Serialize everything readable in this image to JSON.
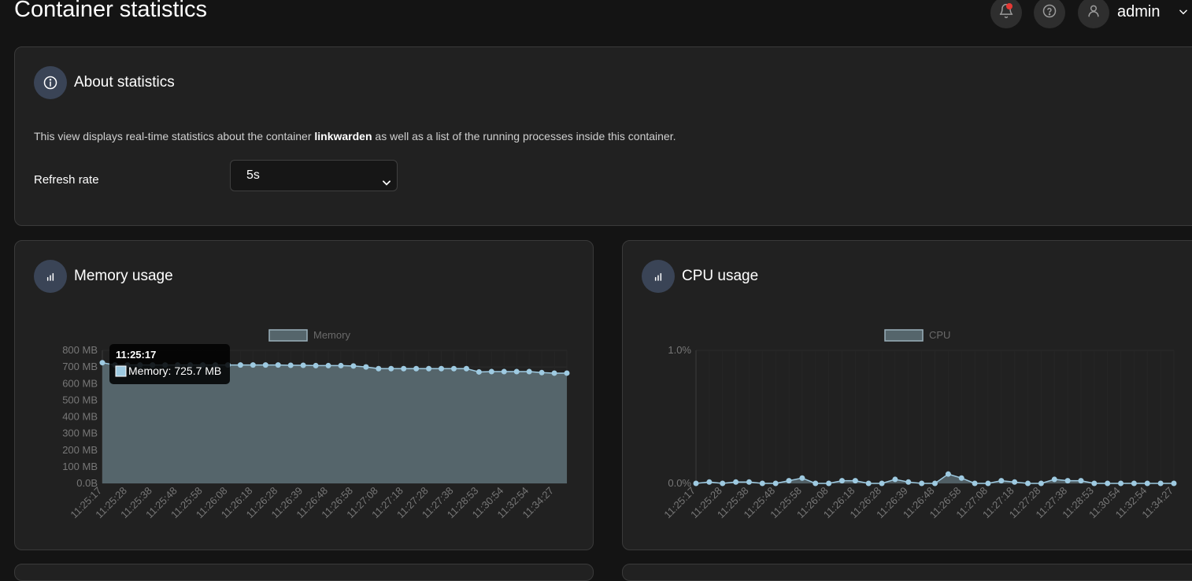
{
  "page": {
    "title": "Container statistics"
  },
  "header": {
    "username": "admin",
    "icons": [
      "bell-icon",
      "help-icon",
      "user-icon",
      "chevron-down-icon"
    ],
    "notification_color": "#e53935"
  },
  "about": {
    "title": "About statistics",
    "description_prefix": "This view displays real-time statistics about the container ",
    "container_name": "linkwarden",
    "description_suffix": " as well as a list of the running processes inside this container.",
    "refresh_label": "Refresh rate",
    "refresh_value": "5s"
  },
  "memory": {
    "title": "Memory usage",
    "tooltip": {
      "time": "11:25:17",
      "label": "Memory: 725.7 MB"
    }
  },
  "cpu": {
    "title": "CPU usage"
  },
  "colors": {
    "accent_fill": "#55656b",
    "point": "#9ecae1",
    "icon_bg": "#3a4456"
  },
  "chart_data": [
    {
      "type": "area",
      "title": "",
      "legend": "Memory",
      "y_ticks": [
        "800 MB",
        "700 MB",
        "600 MB",
        "500 MB",
        "400 MB",
        "300 MB",
        "200 MB",
        "100 MB",
        "0.0B"
      ],
      "ylim": [
        0,
        800
      ],
      "x_labels": [
        "11:25:17",
        "11:25:28",
        "11:25:38",
        "11:25:48",
        "11:25:58",
        "11:26:08",
        "11:26:18",
        "11:26:28",
        "11:26:39",
        "11:26:48",
        "11:26:58",
        "11:27:08",
        "11:27:18",
        "11:27:28",
        "11:27:38",
        "11:28:53",
        "11:30:54",
        "11:32:54",
        "11:34:27"
      ],
      "series": [
        {
          "name": "Memory",
          "values": [
            725.7,
            712,
            712,
            712,
            712,
            712,
            712,
            712,
            712,
            712,
            712,
            712,
            712,
            712,
            712,
            710,
            710,
            708,
            708,
            708,
            706,
            700,
            690,
            690,
            690,
            690,
            690,
            690,
            690,
            690,
            670,
            672,
            672,
            672,
            672,
            666,
            663,
            663
          ]
        }
      ]
    },
    {
      "type": "area",
      "title": "",
      "legend": "CPU",
      "y_ticks": [
        "1.0%",
        "0.0%"
      ],
      "ylim": [
        0,
        1
      ],
      "x_labels": [
        "11:25:17",
        "11:25:28",
        "11:25:38",
        "11:25:48",
        "11:25:58",
        "11:26:08",
        "11:26:18",
        "11:26:28",
        "11:26:39",
        "11:26:48",
        "11:26:58",
        "11:27:08",
        "11:27:18",
        "11:27:28",
        "11:27:38",
        "11:28:53",
        "11:30:54",
        "11:32:54",
        "11:34:27"
      ],
      "series": [
        {
          "name": "CPU",
          "values": [
            0.0,
            0.01,
            0.0,
            0.01,
            0.01,
            0.0,
            0.0,
            0.02,
            0.04,
            0.0,
            0.0,
            0.02,
            0.02,
            0.0,
            0.0,
            0.03,
            0.01,
            0.0,
            0.0,
            0.07,
            0.04,
            0.0,
            0.0,
            0.02,
            0.01,
            0.0,
            0.0,
            0.03,
            0.02,
            0.02,
            0.0,
            0.0,
            0.0,
            0.0,
            0.0,
            0.0,
            0.0
          ]
        }
      ]
    }
  ]
}
